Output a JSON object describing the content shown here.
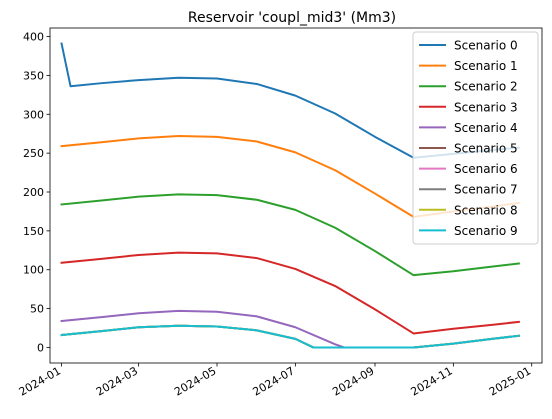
{
  "chart_data": {
    "type": "line",
    "title": "Reservoir 'coupl_mid3' (Mm3)",
    "xlabel": "",
    "ylabel": "",
    "x_ticks": [
      "2024-01",
      "2024-03",
      "2024-05",
      "2024-07",
      "2024-09",
      "2024-11",
      "2025-01"
    ],
    "y_ticks": [
      0,
      50,
      100,
      150,
      200,
      250,
      300,
      350,
      400
    ],
    "xlim": [
      "2023-12-23",
      "2025-01-09"
    ],
    "ylim": [
      -20.0,
      411.0
    ],
    "grid": false,
    "legend_position": "top-right",
    "series": [
      {
        "name": "Scenario 0",
        "color": "#1f77b4",
        "points": [
          [
            "2024-01-01",
            391
          ],
          [
            "2024-01-08",
            336
          ],
          [
            "2024-02-01",
            340
          ],
          [
            "2024-03-01",
            344
          ],
          [
            "2024-04-01",
            347
          ],
          [
            "2024-05-01",
            346
          ],
          [
            "2024-06-01",
            339
          ],
          [
            "2024-07-01",
            324
          ],
          [
            "2024-08-01",
            301
          ],
          [
            "2024-09-01",
            271
          ],
          [
            "2024-10-01",
            244
          ],
          [
            "2024-11-01",
            249
          ],
          [
            "2024-12-01",
            254
          ],
          [
            "2024-12-22",
            257
          ]
        ]
      },
      {
        "name": "Scenario 1",
        "color": "#ff7f0e",
        "points": [
          [
            "2024-01-01",
            259
          ],
          [
            "2024-02-01",
            264
          ],
          [
            "2024-03-01",
            269
          ],
          [
            "2024-04-01",
            272
          ],
          [
            "2024-05-01",
            271
          ],
          [
            "2024-06-01",
            265
          ],
          [
            "2024-07-01",
            251
          ],
          [
            "2024-08-01",
            228
          ],
          [
            "2024-09-01",
            198
          ],
          [
            "2024-10-01",
            168
          ],
          [
            "2024-11-01",
            175
          ],
          [
            "2024-12-01",
            181
          ],
          [
            "2024-12-22",
            186
          ]
        ]
      },
      {
        "name": "Scenario 2",
        "color": "#2ca02c",
        "points": [
          [
            "2024-01-01",
            184
          ],
          [
            "2024-02-01",
            189
          ],
          [
            "2024-03-01",
            194
          ],
          [
            "2024-04-01",
            197
          ],
          [
            "2024-05-01",
            196
          ],
          [
            "2024-06-01",
            190
          ],
          [
            "2024-07-01",
            177
          ],
          [
            "2024-08-01",
            154
          ],
          [
            "2024-09-01",
            124
          ],
          [
            "2024-10-01",
            93
          ],
          [
            "2024-11-01",
            98
          ],
          [
            "2024-12-01",
            104
          ],
          [
            "2024-12-22",
            108
          ]
        ]
      },
      {
        "name": "Scenario 3",
        "color": "#d62728",
        "points": [
          [
            "2024-01-01",
            109
          ],
          [
            "2024-02-01",
            114
          ],
          [
            "2024-03-01",
            119
          ],
          [
            "2024-04-01",
            122
          ],
          [
            "2024-05-01",
            121
          ],
          [
            "2024-06-01",
            115
          ],
          [
            "2024-07-01",
            101
          ],
          [
            "2024-08-01",
            79
          ],
          [
            "2024-09-01",
            49
          ],
          [
            "2024-10-01",
            18
          ],
          [
            "2024-11-01",
            24
          ],
          [
            "2024-12-01",
            29
          ],
          [
            "2024-12-22",
            33
          ]
        ]
      },
      {
        "name": "Scenario 4",
        "color": "#9467bd",
        "points": [
          [
            "2024-01-01",
            34
          ],
          [
            "2024-02-01",
            39
          ],
          [
            "2024-03-01",
            44
          ],
          [
            "2024-04-01",
            47
          ],
          [
            "2024-05-01",
            46
          ],
          [
            "2024-06-01",
            40
          ],
          [
            "2024-07-01",
            26
          ],
          [
            "2024-08-01",
            4
          ],
          [
            "2024-08-08",
            0
          ],
          [
            "2024-10-01",
            0
          ],
          [
            "2024-11-01",
            5
          ],
          [
            "2024-12-01",
            11
          ],
          [
            "2024-12-22",
            15
          ]
        ]
      },
      {
        "name": "Scenario 5",
        "color": "#8c564b",
        "points": [
          [
            "2024-01-01",
            16
          ],
          [
            "2024-02-01",
            21
          ],
          [
            "2024-03-01",
            26
          ],
          [
            "2024-04-01",
            28
          ],
          [
            "2024-05-01",
            27
          ],
          [
            "2024-06-01",
            22
          ],
          [
            "2024-07-01",
            11
          ],
          [
            "2024-07-15",
            0
          ],
          [
            "2024-10-01",
            0
          ],
          [
            "2024-11-01",
            5
          ],
          [
            "2024-12-01",
            11
          ],
          [
            "2024-12-22",
            15
          ]
        ]
      },
      {
        "name": "Scenario 6",
        "color": "#e377c2",
        "points": [
          [
            "2024-01-01",
            16
          ],
          [
            "2024-02-01",
            21
          ],
          [
            "2024-03-01",
            26
          ],
          [
            "2024-04-01",
            28
          ],
          [
            "2024-05-01",
            27
          ],
          [
            "2024-06-01",
            22
          ],
          [
            "2024-07-01",
            11
          ],
          [
            "2024-07-15",
            0
          ],
          [
            "2024-10-01",
            0
          ],
          [
            "2024-11-01",
            5
          ],
          [
            "2024-12-01",
            11
          ],
          [
            "2024-12-22",
            15
          ]
        ]
      },
      {
        "name": "Scenario 7",
        "color": "#7f7f7f",
        "points": [
          [
            "2024-01-01",
            16
          ],
          [
            "2024-02-01",
            21
          ],
          [
            "2024-03-01",
            26
          ],
          [
            "2024-04-01",
            28
          ],
          [
            "2024-05-01",
            27
          ],
          [
            "2024-06-01",
            22
          ],
          [
            "2024-07-01",
            11
          ],
          [
            "2024-07-15",
            0
          ],
          [
            "2024-10-01",
            0
          ],
          [
            "2024-11-01",
            5
          ],
          [
            "2024-12-01",
            11
          ],
          [
            "2024-12-22",
            15
          ]
        ]
      },
      {
        "name": "Scenario 8",
        "color": "#bcbd22",
        "points": [
          [
            "2024-01-01",
            16
          ],
          [
            "2024-02-01",
            21
          ],
          [
            "2024-03-01",
            26
          ],
          [
            "2024-04-01",
            28
          ],
          [
            "2024-05-01",
            27
          ],
          [
            "2024-06-01",
            22
          ],
          [
            "2024-07-01",
            11
          ],
          [
            "2024-07-15",
            0
          ],
          [
            "2024-10-01",
            0
          ],
          [
            "2024-11-01",
            5
          ],
          [
            "2024-12-01",
            11
          ],
          [
            "2024-12-22",
            15
          ]
        ]
      },
      {
        "name": "Scenario 9",
        "color": "#17becf",
        "points": [
          [
            "2024-01-01",
            16
          ],
          [
            "2024-02-01",
            21
          ],
          [
            "2024-03-01",
            26
          ],
          [
            "2024-04-01",
            28
          ],
          [
            "2024-05-01",
            27
          ],
          [
            "2024-06-01",
            22
          ],
          [
            "2024-07-01",
            11
          ],
          [
            "2024-07-15",
            0
          ],
          [
            "2024-10-01",
            0
          ],
          [
            "2024-11-01",
            5
          ],
          [
            "2024-12-01",
            11
          ],
          [
            "2024-12-22",
            15
          ]
        ]
      }
    ]
  }
}
